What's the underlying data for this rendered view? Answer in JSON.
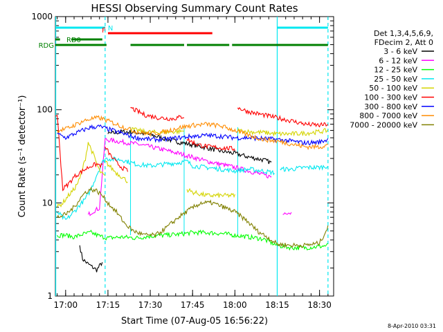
{
  "chart_data": {
    "type": "line",
    "title": "HESSI Observing Summary Count Rates",
    "xlabel": "Start Time (07-Aug-05 16:56:22)",
    "ylabel": "Count Rate (s⁻¹ detector⁻¹)",
    "yscale": "log",
    "xlim": [
      "16:56:22",
      "18:35:00"
    ],
    "ylim": [
      1,
      1000
    ],
    "xticks": [
      "17:00",
      "17:15",
      "17:30",
      "17:45",
      "18:00",
      "18:15",
      "18:30"
    ],
    "yticks": [
      "1",
      "10",
      "100",
      "1000"
    ],
    "legend_header": [
      "Det 1,3,4,5,6,9,",
      "FDecim 2, Att 0"
    ],
    "legend_position": "right",
    "footer": "8-Apr-2010 03:31",
    "flags": [
      {
        "label": "N",
        "color": "#00e8f0",
        "segments": [
          [
            "16:56:22",
            "17:14:00"
          ],
          [
            "18:15:00",
            "18:33:00"
          ]
        ]
      },
      {
        "label": "F",
        "color": "#ff0000",
        "segments": [
          [
            "17:15:00",
            "17:52:00"
          ]
        ]
      },
      {
        "label": "RD0",
        "color": "#008000",
        "segments": [
          [
            "16:56:22",
            "16:58:00"
          ],
          [
            "17:02:00",
            "17:13:00"
          ]
        ]
      },
      {
        "label": "RDG",
        "color": "#008000",
        "segments": [
          [
            "16:56:22",
            "17:14:30"
          ],
          [
            "17:23:00",
            "17:42:00"
          ],
          [
            "17:43:00",
            "17:58:00"
          ],
          [
            "17:59:00",
            "18:33:00"
          ]
        ]
      }
    ],
    "vlines": [
      {
        "time": "16:56:30",
        "style": "solid",
        "color": "#00e8f0"
      },
      {
        "time": "17:14:00",
        "style": "dashed",
        "color": "#00e8f0"
      },
      {
        "time": "18:15:00",
        "style": "solid",
        "color": "#00e8f0"
      },
      {
        "time": "18:33:00",
        "style": "dashed",
        "color": "#00e8f0"
      }
    ],
    "gap_lines": [
      "17:23:00",
      "17:42:00",
      "18:01:00"
    ],
    "series": [
      {
        "name": "3 - 6 keV",
        "color": "#000000",
        "segments": [
          {
            "x": [
              "17:05:00",
              "17:06:00",
              "17:08:00",
              "17:10:00",
              "17:11:00",
              "17:12:00",
              "17:13:00"
            ],
            "y": [
              3.5,
              2.5,
              2.2,
              2.0,
              1.9,
              2.1,
              2.3
            ]
          },
          {
            "x": [
              "17:15:00",
              "17:20:00",
              "17:25:00",
              "17:30:00",
              "17:35:00",
              "17:40:00",
              "17:45:00",
              "17:50:00",
              "17:55:00",
              "18:00:00",
              "18:05:00",
              "18:10:00",
              "18:13:00"
            ],
            "y": [
              55,
              58,
              57,
              54,
              49,
              45,
              42,
              39,
              36,
              34,
              31,
              29,
              27
            ]
          }
        ]
      },
      {
        "name": "6 - 12 keV",
        "color": "#ff00ff",
        "segments": [
          {
            "x": [
              "17:08:00",
              "17:10:00",
              "17:12:00",
              "17:14:00",
              "17:16:00",
              "17:20:00",
              "17:25:00",
              "17:30:00",
              "17:35:00",
              "17:40:00",
              "17:45:00",
              "17:50:00",
              "17:55:00",
              "18:00:00",
              "18:05:00",
              "18:10:00",
              "18:13:00"
            ],
            "y": [
              7.5,
              8.2,
              8.8,
              48,
              47,
              45,
              43,
              40,
              37,
              34,
              31,
              28,
              26,
              24,
              22,
              20,
              19
            ]
          },
          {
            "x": [
              "18:17:00",
              "18:18:00",
              "18:20:00"
            ],
            "y": [
              7.5,
              8.0,
              7.8
            ]
          }
        ]
      },
      {
        "name": "12 - 25 keV",
        "color": "#00ff00",
        "segments": [
          {
            "x": [
              "16:57:00",
              "17:00:00",
              "17:03:00",
              "17:06:00",
              "17:09:00",
              "17:12:00",
              "17:15:00",
              "17:20:00",
              "17:25:00",
              "17:30:00",
              "17:35:00",
              "17:40:00",
              "17:45:00",
              "17:50:00",
              "17:55:00",
              "18:00:00",
              "18:05:00",
              "18:10:00",
              "18:15:00",
              "18:20:00",
              "18:25:00",
              "18:30:00",
              "18:33:00"
            ],
            "y": [
              4.5,
              4.5,
              4.3,
              4.6,
              4.8,
              4.4,
              4.2,
              4.3,
              4.2,
              4.4,
              4.5,
              4.6,
              4.8,
              4.8,
              4.7,
              4.5,
              4.3,
              4.1,
              3.5,
              3.3,
              3.3,
              3.4,
              3.5
            ]
          }
        ]
      },
      {
        "name": "25 - 50 keV",
        "color": "#00e8f0",
        "segments": [
          {
            "x": [
              "16:57:00",
              "17:00:00",
              "17:03:00",
              "17:05:00",
              "17:07:00",
              "17:09:00",
              "17:11:00",
              "17:13:00",
              "17:14:00"
            ],
            "y": [
              8,
              6.5,
              8,
              9.5,
              11,
              14,
              20,
              27,
              30
            ]
          },
          {
            "x": [
              "17:14:00",
              "17:20:00",
              "17:25:00",
              "17:30:00",
              "17:35:00",
              "17:40:00",
              "17:43:00",
              "17:45:00",
              "17:50:00",
              "17:55:00",
              "18:00:00",
              "18:05:00",
              "18:10:00",
              "18:14:00"
            ],
            "y": [
              30,
              29,
              26,
              25,
              26,
              27,
              28,
              25,
              24,
              23,
              22,
              23,
              22,
              21
            ]
          },
          {
            "x": [
              "18:16:00",
              "18:20:00",
              "18:25:00",
              "18:30:00",
              "18:33:00"
            ],
            "y": [
              23,
              23,
              24,
              24,
              25
            ]
          }
        ]
      },
      {
        "name": "50 - 100 keV",
        "color": "#d4d400",
        "segments": [
          {
            "x": [
              "16:57:00",
              "16:59:00",
              "17:01:00",
              "17:03:00",
              "17:05:00",
              "17:07:00",
              "17:08:00",
              "17:10:00",
              "17:12:00",
              "17:14:00"
            ],
            "y": [
              9,
              10,
              12,
              14,
              18,
              30,
              45,
              32,
              22,
              19
            ]
          },
          {
            "x": [
              "17:14:00",
              "17:16:00",
              "17:18:00",
              "17:20:00",
              "17:22:00"
            ],
            "y": [
              28,
              24,
              21,
              19,
              17
            ]
          },
          {
            "x": [
              "17:23:00",
              "17:28:00",
              "17:33:00",
              "17:38:00",
              "17:42:00"
            ],
            "y": [
              62,
              58,
              57,
              58,
              59
            ]
          },
          {
            "x": [
              "17:43:00",
              "17:45:00",
              "17:50:00",
              "17:55:00",
              "18:00:00"
            ],
            "y": [
              14,
              13,
              12,
              12,
              12
            ]
          },
          {
            "x": [
              "18:01:00",
              "18:05:00",
              "18:10:00",
              "18:15:00",
              "18:20:00",
              "18:25:00",
              "18:30:00",
              "18:33:00"
            ],
            "y": [
              60,
              58,
              57,
              55,
              55,
              56,
              58,
              60
            ]
          }
        ]
      },
      {
        "name": "100 - 300 keV",
        "color": "#ff0000",
        "segments": [
          {
            "x": [
              "16:56:30",
              "16:57:00",
              "16:59:00",
              "17:01:00",
              "17:03:00",
              "17:05:00",
              "17:07:00",
              "17:09:00",
              "17:11:00",
              "17:13:00"
            ],
            "y": [
              85,
              90,
              14,
              16,
              19,
              21,
              23,
              25,
              26,
              25
            ]
          },
          {
            "x": [
              "17:14:00",
              "17:16:00",
              "17:18:00",
              "17:20:00",
              "17:22:00"
            ],
            "y": [
              40,
              32,
              27,
              24,
              22
            ]
          },
          {
            "x": [
              "17:23:00",
              "17:28:00",
              "17:33:00",
              "17:38:00",
              "17:42:00"
            ],
            "y": [
              105,
              88,
              82,
              80,
              85
            ]
          },
          {
            "x": [
              "17:43:00",
              "17:47:00",
              "17:51:00",
              "17:55:00",
              "18:00:00"
            ],
            "y": [
              48,
              42,
              40,
              39,
              38
            ]
          },
          {
            "x": [
              "18:01:00",
              "18:05:00",
              "18:10:00",
              "18:15:00",
              "18:20:00",
              "18:25:00",
              "18:30:00",
              "18:33:00"
            ],
            "y": [
              105,
              95,
              88,
              82,
              76,
              70,
              68,
              70
            ]
          }
        ]
      },
      {
        "name": "300 - 800 keV",
        "color": "#0000ff",
        "segments": [
          {
            "x": [
              "16:57:00",
              "17:00:00",
              "17:03:00",
              "17:06:00",
              "17:09:00",
              "17:12:00",
              "17:15:00",
              "17:20:00",
              "17:25:00",
              "17:30:00",
              "17:35:00",
              "17:40:00",
              "17:45:00",
              "17:50:00",
              "17:55:00",
              "18:00:00",
              "18:05:00",
              "18:10:00",
              "18:15:00",
              "18:20:00",
              "18:25:00",
              "18:30:00",
              "18:33:00"
            ],
            "y": [
              55,
              50,
              55,
              60,
              65,
              66,
              62,
              56,
              50,
              48,
              48,
              50,
              52,
              53,
              52,
              50,
              50,
              49,
              48,
              46,
              44,
              45,
              48
            ]
          }
        ]
      },
      {
        "name": "800 - 7000 keV",
        "color": "#ff8c00",
        "segments": [
          {
            "x": [
              "16:57:00",
              "17:00:00",
              "17:03:00",
              "17:06:00",
              "17:09:00",
              "17:12:00",
              "17:15:00",
              "17:20:00",
              "17:25:00",
              "17:30:00",
              "17:35:00",
              "17:40:00",
              "17:45:00",
              "17:50:00",
              "17:55:00",
              "18:00:00",
              "18:05:00",
              "18:10:00",
              "18:15:00",
              "18:20:00",
              "18:25:00",
              "18:30:00",
              "18:33:00"
            ],
            "y": [
              60,
              62,
              68,
              75,
              80,
              82,
              76,
              66,
              58,
              55,
              58,
              64,
              68,
              70,
              67,
              60,
              53,
              48,
              46,
              43,
              40,
              40,
              42
            ]
          }
        ]
      },
      {
        "name": "7000 - 20000 keV",
        "color": "#808000",
        "segments": [
          {
            "x": [
              "16:57:00",
              "17:00:00",
              "17:03:00",
              "17:05:00",
              "17:07:00",
              "17:09:00",
              "17:11:00",
              "17:13:00",
              "17:15:00",
              "17:18:00",
              "17:21:00",
              "17:24:00",
              "17:28:00",
              "17:32:00",
              "17:36:00",
              "17:40:00",
              "17:44:00",
              "17:48:00",
              "17:52:00",
              "17:56:00",
              "18:00:00",
              "18:04:00",
              "18:08:00",
              "18:12:00",
              "18:15:00",
              "18:20:00",
              "18:25:00",
              "18:30:00",
              "18:33:00"
            ],
            "y": [
              7,
              7.5,
              9,
              11,
              13,
              14,
              13.5,
              12,
              10,
              8,
              6,
              5,
              4.5,
              4.5,
              5.5,
              7,
              8.5,
              10,
              10,
              9,
              8,
              6.5,
              5,
              4.2,
              3.6,
              3.5,
              3.5,
              3.7,
              5.5
            ]
          }
        ]
      }
    ]
  }
}
